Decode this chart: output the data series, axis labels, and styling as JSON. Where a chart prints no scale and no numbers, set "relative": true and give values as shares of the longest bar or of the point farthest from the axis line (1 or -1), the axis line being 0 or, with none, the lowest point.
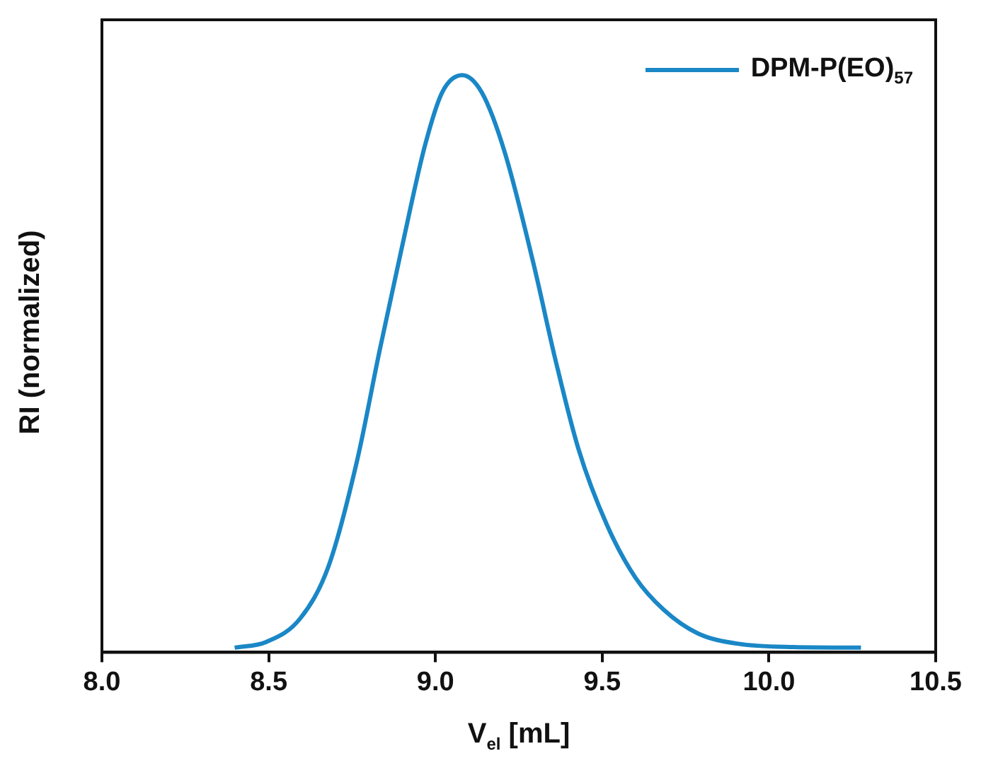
{
  "chart_data": {
    "type": "line",
    "xlabel": "V$_{el}$ [mL]",
    "ylabel": "RI (normalized)",
    "relative": true,
    "xlim": [
      8.0,
      10.5
    ],
    "xticks": [
      {
        "value": 8.0,
        "label": "8.0"
      },
      {
        "value": 8.5,
        "label": "8.5"
      },
      {
        "value": 9.0,
        "label": "9.0"
      },
      {
        "value": 9.5,
        "label": "9.5"
      },
      {
        "value": 10.0,
        "label": "10.0"
      },
      {
        "value": 10.5,
        "label": "10.5"
      }
    ],
    "grid": false,
    "legend": "top right",
    "marker": "none",
    "line_style": "solid",
    "x": [
      8.398,
      8.493,
      8.595,
      8.68,
      8.765,
      8.833,
      8.901,
      8.969,
      9.02,
      9.08,
      9.139,
      9.207,
      9.293,
      9.361,
      9.429,
      9.514,
      9.599,
      9.684,
      9.786,
      9.905,
      10.075,
      10.276
    ],
    "series": [
      {
        "name": "DPM-P(EO)$_{57}$",
        "color": "#1a87c6",
        "values": [
          0.008,
          0.018,
          0.059,
          0.15,
          0.332,
          0.524,
          0.706,
          0.879,
          0.97,
          1.0,
          0.97,
          0.868,
          0.676,
          0.504,
          0.352,
          0.221,
          0.13,
          0.074,
          0.033,
          0.015,
          0.009,
          0.008
        ]
      }
    ]
  }
}
